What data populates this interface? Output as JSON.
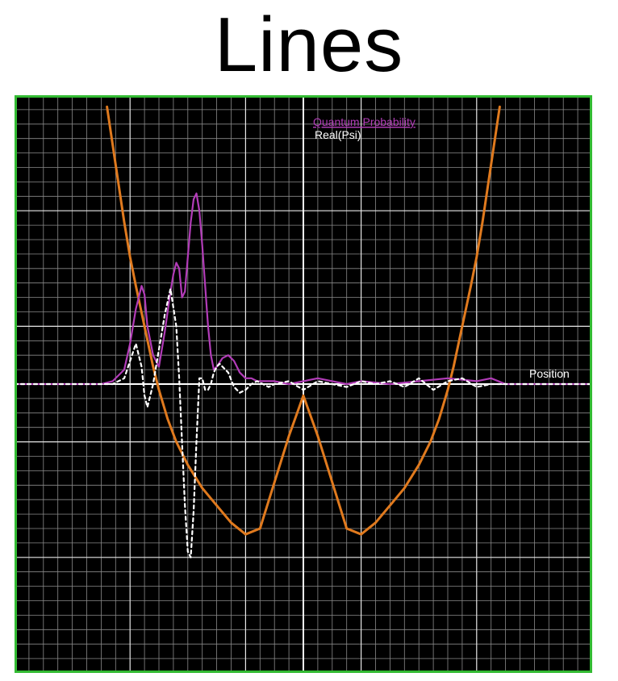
{
  "title": "Lines",
  "colors": {
    "background": "#000000",
    "frame": "#33bb33",
    "grid": "#8a8a8a",
    "grid_major": "#e8e8e8",
    "potential": "#e07a1e",
    "probability": "#b23cb8",
    "real_psi": "#ffffff",
    "axis": "#ffffff"
  },
  "chart_data": {
    "type": "line",
    "title": "",
    "xlabel": "Position",
    "ylabel": "",
    "grid": true,
    "legend_position": "top-center",
    "legend": [
      "Quantum Probability",
      "Real(Psi)"
    ],
    "xlim": [
      -1,
      1
    ],
    "ylim": [
      -1,
      1
    ],
    "series": [
      {
        "name": "Quantum Probability",
        "style": "solid",
        "x": [
          -1.0,
          -0.7,
          -0.66,
          -0.62,
          -0.6,
          -0.58,
          -0.56,
          -0.55,
          -0.54,
          -0.52,
          -0.5,
          -0.48,
          -0.46,
          -0.45,
          -0.44,
          -0.43,
          -0.42,
          -0.41,
          -0.4,
          -0.39,
          -0.38,
          -0.37,
          -0.36,
          -0.35,
          -0.34,
          -0.33,
          -0.32,
          -0.31,
          -0.3,
          -0.28,
          -0.26,
          -0.24,
          -0.22,
          -0.2,
          -0.18,
          -0.16,
          -0.14,
          -0.12,
          -0.1,
          -0.05,
          0.0,
          0.05,
          0.1,
          0.15,
          0.2,
          0.3,
          0.4,
          0.5,
          0.6,
          0.65,
          0.7,
          1.0
        ],
        "y": [
          0.0,
          0.0,
          0.01,
          0.05,
          0.14,
          0.26,
          0.34,
          0.31,
          0.2,
          0.1,
          0.06,
          0.18,
          0.32,
          0.38,
          0.42,
          0.4,
          0.3,
          0.32,
          0.44,
          0.56,
          0.64,
          0.66,
          0.6,
          0.48,
          0.34,
          0.2,
          0.1,
          0.05,
          0.06,
          0.09,
          0.1,
          0.08,
          0.04,
          0.02,
          0.02,
          0.01,
          0.01,
          0.01,
          0.01,
          0.0,
          0.01,
          0.02,
          0.01,
          0.0,
          0.01,
          0.0,
          0.01,
          0.02,
          0.01,
          0.02,
          0.0,
          0.0
        ]
      },
      {
        "name": "Real(Psi)",
        "style": "dashed",
        "x": [
          -1.0,
          -0.7,
          -0.66,
          -0.62,
          -0.6,
          -0.58,
          -0.56,
          -0.55,
          -0.54,
          -0.52,
          -0.5,
          -0.48,
          -0.46,
          -0.44,
          -0.43,
          -0.42,
          -0.41,
          -0.4,
          -0.39,
          -0.38,
          -0.37,
          -0.36,
          -0.35,
          -0.34,
          -0.33,
          -0.32,
          -0.31,
          -0.3,
          -0.29,
          -0.28,
          -0.26,
          -0.24,
          -0.22,
          -0.2,
          -0.18,
          -0.16,
          -0.14,
          -0.12,
          -0.1,
          -0.05,
          0.0,
          0.05,
          0.1,
          0.15,
          0.2,
          0.25,
          0.3,
          0.35,
          0.4,
          0.45,
          0.5,
          0.55,
          0.6,
          0.65,
          0.7,
          1.0
        ],
        "y": [
          0.0,
          0.0,
          0.0,
          0.02,
          0.08,
          0.14,
          0.06,
          -0.04,
          -0.08,
          0.0,
          0.12,
          0.24,
          0.33,
          0.2,
          0.02,
          -0.2,
          -0.42,
          -0.58,
          -0.6,
          -0.44,
          -0.2,
          0.02,
          0.02,
          -0.02,
          -0.02,
          0.0,
          0.04,
          0.06,
          0.07,
          0.06,
          0.04,
          -0.01,
          -0.03,
          -0.02,
          0.0,
          0.01,
          0.0,
          -0.01,
          0.0,
          0.01,
          -0.02,
          0.01,
          0.0,
          -0.01,
          0.01,
          0.0,
          0.01,
          -0.01,
          0.02,
          -0.02,
          0.01,
          0.02,
          -0.01,
          0.0,
          0.0,
          0.0
        ]
      },
      {
        "name": "",
        "style": "solid",
        "x": [
          -0.68,
          -0.65,
          -0.62,
          -0.6,
          -0.58,
          -0.55,
          -0.52,
          -0.5,
          -0.47,
          -0.44,
          -0.4,
          -0.35,
          -0.3,
          -0.25,
          -0.2,
          -0.15,
          -0.1,
          -0.05,
          0.0,
          0.05,
          0.1,
          0.15,
          0.2,
          0.25,
          0.3,
          0.35,
          0.4,
          0.44,
          0.47,
          0.5,
          0.52,
          0.55,
          0.58,
          0.6,
          0.62,
          0.65,
          0.68
        ],
        "y": [
          0.96,
          0.76,
          0.56,
          0.44,
          0.34,
          0.2,
          0.06,
          -0.02,
          -0.12,
          -0.2,
          -0.28,
          -0.36,
          -0.42,
          -0.48,
          -0.52,
          -0.5,
          -0.34,
          -0.18,
          -0.04,
          -0.18,
          -0.34,
          -0.5,
          -0.52,
          -0.48,
          -0.42,
          -0.36,
          -0.28,
          -0.2,
          -0.12,
          -0.02,
          0.06,
          0.2,
          0.34,
          0.44,
          0.56,
          0.76,
          0.96
        ]
      }
    ]
  }
}
